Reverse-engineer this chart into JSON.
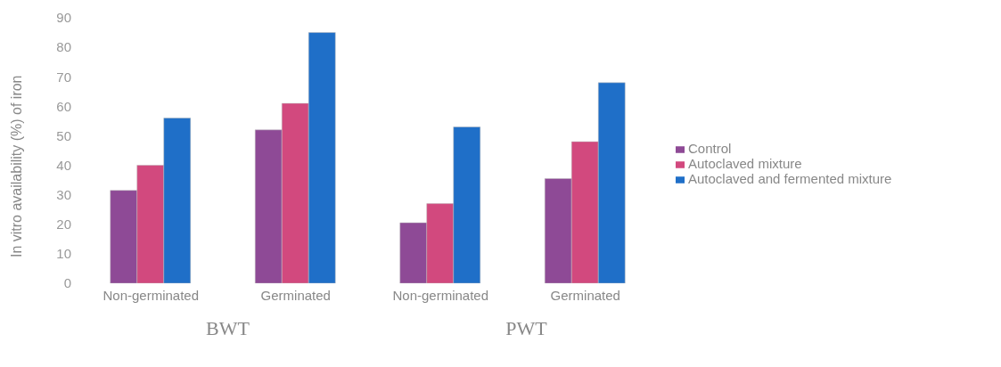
{
  "chart_data": {
    "type": "bar",
    "ylabel": "In vitro availability (%) of iron",
    "categories": [
      "Non-germinated",
      "Germinated",
      "Non-germinated",
      "Germinated"
    ],
    "series": [
      {
        "name": "Control",
        "color": "#8e4a96",
        "values": [
          31.5,
          52,
          20.5,
          35.5
        ]
      },
      {
        "name": "Autoclaved mixture",
        "color": "#d2497e",
        "values": [
          40,
          61,
          27,
          48
        ]
      },
      {
        "name": "Autoclaved and fermented mixture",
        "color": "#1f6fc8",
        "values": [
          56,
          85,
          53,
          68
        ]
      }
    ],
    "annotations": [
      "BWT",
      "PWT"
    ],
    "ylim": [
      0,
      90
    ],
    "yticks": [
      0,
      10,
      20,
      30,
      40,
      50,
      60,
      70,
      80,
      90
    ],
    "grid": false,
    "legend": "right"
  }
}
